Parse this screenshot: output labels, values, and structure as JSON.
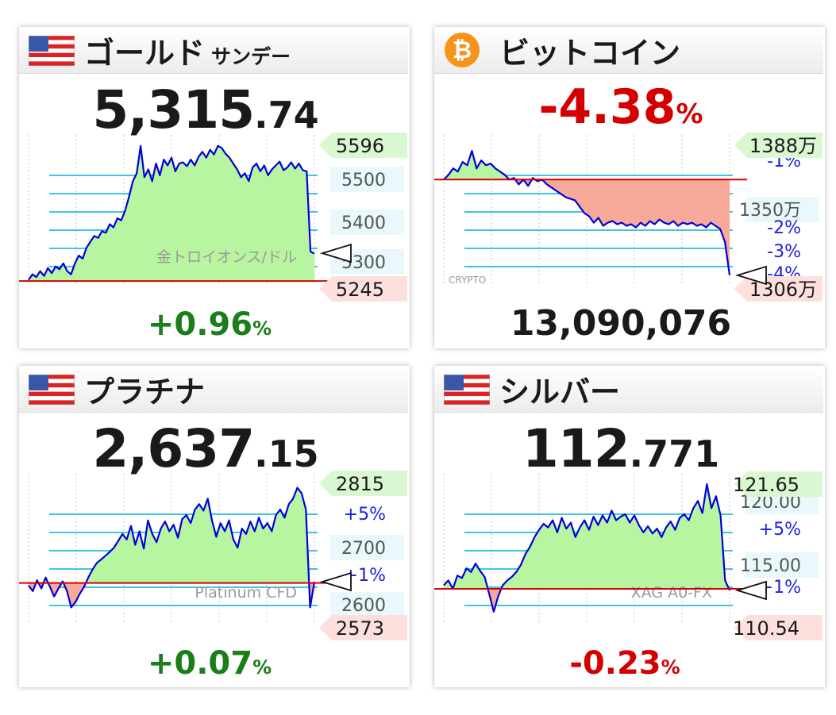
{
  "colors": {
    "up": "#1a7f1a",
    "down": "#d40000",
    "price_line": "#0000dd",
    "fill_up": "#b8f5a0",
    "fill_down": "#f7a99a",
    "grid": "#00b0e0",
    "baseline": "#d40000",
    "high_tag": "#d9f7d0",
    "low_tag": "#fde0de",
    "mid_tag": "#e8f8fb",
    "bitcoin": "#f7931a"
  },
  "panels": [
    {
      "title": "ゴールド",
      "subtitle": "サンデー",
      "icon": "us-flag-icon",
      "price_int": "5,315",
      "price_dec": ".74",
      "change": "+0.96",
      "change_unit": "%",
      "chart_data": {
        "type": "line",
        "watermark": "金トロイオンス/ドル",
        "ylim": [
          5235,
          5610
        ],
        "high_label": "5596",
        "low_label": "5245",
        "tick_labels": [
          "5500",
          "5400",
          "5300"
        ],
        "pct_labels": [],
        "baseline": 5245,
        "last": 5315.74,
        "values": [
          5248,
          5262,
          5255,
          5270,
          5258,
          5278,
          5265,
          5282,
          5275,
          5290,
          5270,
          5262,
          5290,
          5310,
          5302,
          5330,
          5345,
          5360,
          5355,
          5372,
          5368,
          5390,
          5382,
          5405,
          5400,
          5425,
          5460,
          5500,
          5520,
          5590,
          5510,
          5530,
          5500,
          5545,
          5515,
          5555,
          5540,
          5560,
          5525,
          5545,
          5548,
          5538,
          5555,
          5540,
          5562,
          5575,
          5560,
          5580,
          5568,
          5590,
          5585,
          5570,
          5560,
          5545,
          5530,
          5510,
          5520,
          5500,
          5535,
          5545,
          5525,
          5540,
          5515,
          5530,
          5540,
          5550,
          5528,
          5535,
          5548,
          5532,
          5545,
          5528,
          5525,
          5320,
          5315
        ]
      }
    },
    {
      "title": "ビットコイン",
      "icon": "bitcoin-icon",
      "change": "-4.38",
      "change_unit": "%",
      "value": "13,090,076",
      "chart_data": {
        "type": "line",
        "watermark": "CRYPTO",
        "ylim": [
          13030000,
          13950000
        ],
        "high_label": "1388万",
        "low_label": "1306万",
        "tick_labels": [
          "1350万"
        ],
        "pct_labels": [
          "-1%",
          "-2%",
          "-3%",
          "-4%"
        ],
        "baseline": 13690000,
        "last": 13090076,
        "values": [
          13690000,
          13720000,
          13760000,
          13740000,
          13800000,
          13780000,
          13870000,
          13760000,
          13810000,
          13780000,
          13790000,
          13760000,
          13740000,
          13720000,
          13690000,
          13700000,
          13660000,
          13690000,
          13650000,
          13700000,
          13680000,
          13690000,
          13660000,
          13640000,
          13620000,
          13600000,
          13580000,
          13570000,
          13560000,
          13520000,
          13480000,
          13460000,
          13420000,
          13450000,
          13400000,
          13420000,
          13430000,
          13410000,
          13420000,
          13400000,
          13410000,
          13390000,
          13420000,
          13400000,
          13430000,
          13410000,
          13440000,
          13420000,
          13410000,
          13430000,
          13400000,
          13420000,
          13410000,
          13420000,
          13400000,
          13410000,
          13390000,
          13420000,
          13400000,
          13380000,
          13300000,
          13090076
        ]
      }
    },
    {
      "title": "プラチナ",
      "icon": "us-flag-icon",
      "price_int": "2,637",
      "price_dec": ".15",
      "change": "+0.07",
      "change_unit": "%",
      "chart_data": {
        "type": "line",
        "watermark": "Platinum CFD",
        "ylim": [
          2560,
          2830
        ],
        "high_label": "2815",
        "low_label": "2573",
        "tick_labels": [
          "2700",
          "2600"
        ],
        "pct_labels": [
          "+5%",
          "+1%"
        ],
        "baseline": 2635,
        "last": 2637.15,
        "values": [
          2630,
          2620,
          2640,
          2625,
          2645,
          2628,
          2610,
          2625,
          2638,
          2620,
          2590,
          2600,
          2615,
          2628,
          2645,
          2660,
          2672,
          2678,
          2685,
          2692,
          2700,
          2712,
          2725,
          2715,
          2740,
          2705,
          2730,
          2698,
          2750,
          2725,
          2710,
          2735,
          2748,
          2730,
          2742,
          2718,
          2752,
          2760,
          2745,
          2770,
          2780,
          2768,
          2790,
          2750,
          2720,
          2745,
          2730,
          2750,
          2715,
          2700,
          2735,
          2725,
          2748,
          2730,
          2755,
          2735,
          2745,
          2730,
          2760,
          2770,
          2755,
          2780,
          2790,
          2810,
          2800,
          2770,
          2590,
          2637
        ]
      }
    },
    {
      "title": "シルバー",
      "icon": "us-flag-icon",
      "price_int": "112",
      "price_dec": ".771",
      "change": "-0.23",
      "change_unit": "%",
      "chart_data": {
        "type": "line",
        "watermark": "XAG A0-FX",
        "ylim": [
          110,
          122.2
        ],
        "high_label": "121.65",
        "low_label": "110.54",
        "tick_labels": [
          "120.00",
          "115.00"
        ],
        "pct_labels": [
          "+5%",
          "+1%"
        ],
        "baseline": 112.9,
        "last": 112.771,
        "values": [
          113.2,
          113.6,
          112.9,
          114.0,
          113.8,
          114.6,
          114.3,
          115.0,
          114.4,
          113.9,
          112.5,
          111.0,
          112.3,
          113.2,
          113.6,
          113.9,
          114.3,
          114.9,
          115.8,
          116.4,
          117.2,
          117.8,
          118.3,
          118.0,
          118.6,
          117.6,
          118.8,
          117.9,
          118.4,
          117.2,
          118.0,
          118.6,
          117.8,
          118.9,
          118.2,
          119.0,
          118.4,
          119.4,
          118.6,
          118.9,
          119.1,
          118.4,
          119.0,
          118.2,
          117.6,
          118.1,
          117.5,
          117.9,
          117.2,
          118.0,
          118.5,
          117.8,
          118.8,
          119.1,
          118.6,
          119.6,
          120.2,
          119.2,
          121.6,
          119.6,
          120.6,
          119.0,
          113.6,
          112.771
        ]
      }
    }
  ]
}
